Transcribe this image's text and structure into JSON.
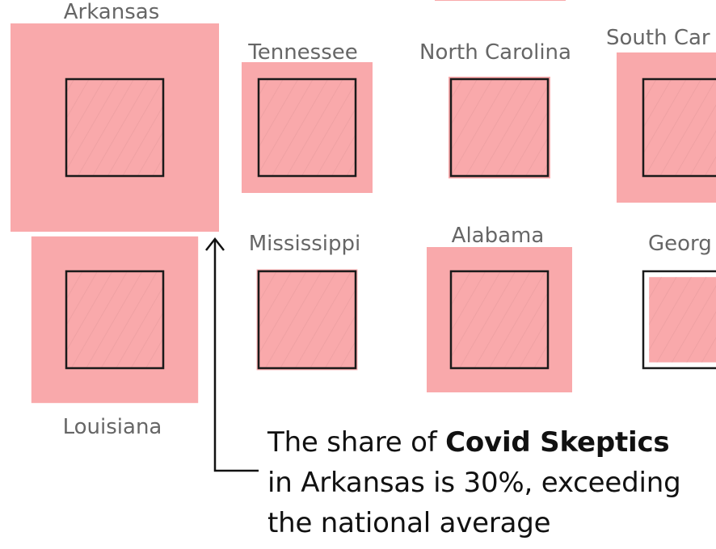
{
  "chart_data": {
    "type": "proportional-square-grid",
    "description_units": "share of Covid Skeptics vs. national average (outlined square)",
    "colors": {
      "state_fill": "#f9a9ab",
      "outline": "#1a1a1a",
      "hatch": "#e59a9c"
    },
    "states": [
      {
        "name": "Arkansas",
        "share_ratio": 2.15
      },
      {
        "name": "Tennessee",
        "share_ratio": 1.35
      },
      {
        "name": "North Carolina",
        "share_ratio": 1.05
      },
      {
        "name": "South Carolina",
        "share_ratio": 1.55
      },
      {
        "name": "Louisiana",
        "share_ratio": 1.72
      },
      {
        "name": "Mississippi",
        "share_ratio": 1.04
      },
      {
        "name": "Alabama",
        "share_ratio": 1.5
      },
      {
        "name": "Georgia",
        "share_ratio": 0.88
      }
    ]
  },
  "labels": {
    "arkansas": "Arkansas",
    "tennessee": "Tennessee",
    "north_carolina": "North Carolina",
    "south_carolina": "South Car",
    "louisiana": "Louisiana",
    "mississippi": "Mississippi",
    "alabama": "Alabama",
    "georgia": "Georg"
  },
  "annotation": {
    "line1_prefix": "The share of ",
    "line1_bold": "Covid Skeptics",
    "line2": "in Arkansas is 30%, exceeding",
    "line3": "the national average"
  }
}
